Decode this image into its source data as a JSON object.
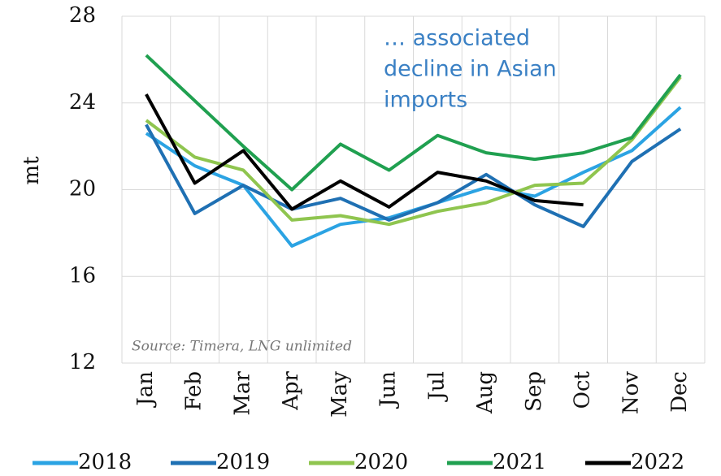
{
  "chart_data": {
    "type": "line",
    "y_label": "mt",
    "annotation": [
      "… associated",
      "decline in Asian",
      "imports"
    ],
    "source": "Source: Timera, LNG unlimited",
    "categories": [
      "Jan",
      "Feb",
      "Mar",
      "Apr",
      "May",
      "Jun",
      "Jul",
      "Aug",
      "Sep",
      "Oct",
      "Nov",
      "Dec"
    ],
    "series": [
      {
        "name": "2018",
        "color": "#2ba3e3",
        "values": [
          22.6,
          21.1,
          20.2,
          17.4,
          18.4,
          18.7,
          19.4,
          20.1,
          19.7,
          20.8,
          21.8,
          23.8
        ]
      },
      {
        "name": "2019",
        "color": "#1f70b3",
        "values": [
          23.0,
          18.9,
          20.2,
          19.1,
          19.6,
          18.6,
          19.4,
          20.7,
          19.3,
          18.3,
          21.3,
          22.8
        ]
      },
      {
        "name": "2020",
        "color": "#8fc54f",
        "values": [
          23.2,
          21.5,
          20.9,
          18.6,
          18.8,
          18.4,
          19.0,
          19.4,
          20.2,
          20.3,
          22.3,
          25.2
        ]
      },
      {
        "name": "2021",
        "color": "#20a050",
        "values": [
          26.2,
          24.1,
          22.0,
          20.0,
          22.1,
          20.9,
          22.5,
          21.7,
          21.4,
          21.7,
          22.4,
          25.3
        ]
      },
      {
        "name": "2022",
        "color": "#000000",
        "values": [
          24.4,
          20.3,
          21.8,
          19.1,
          20.4,
          19.2,
          20.8,
          20.4,
          19.5,
          19.3,
          null,
          null
        ]
      }
    ],
    "ylim": [
      12,
      28
    ],
    "yticks": [
      12,
      16,
      20,
      24,
      28
    ],
    "grid": true
  }
}
